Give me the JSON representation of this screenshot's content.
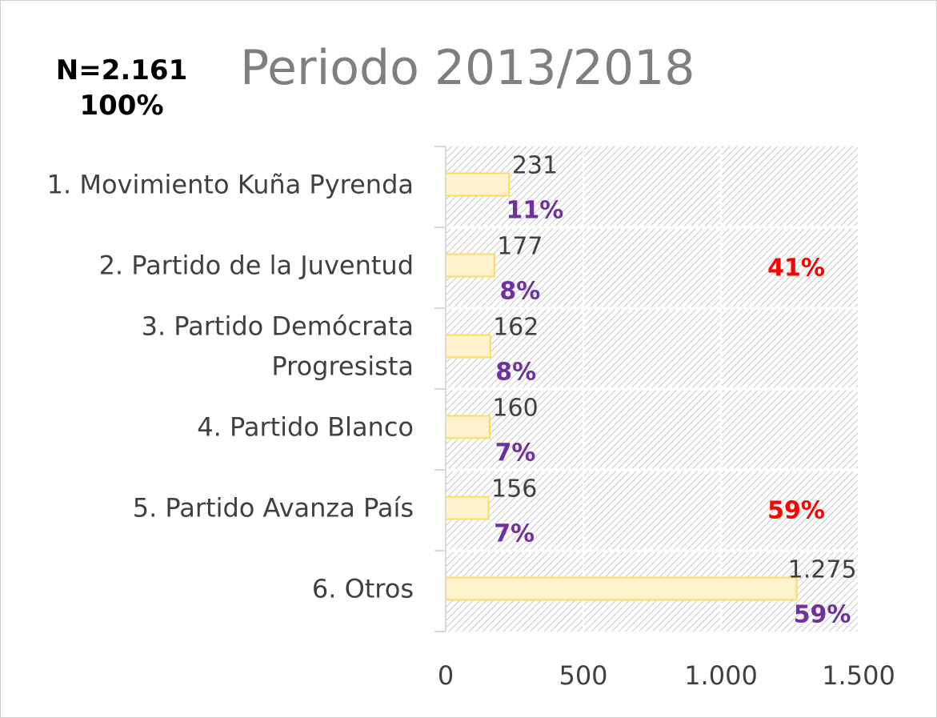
{
  "header": {
    "n_text": "N=2.161",
    "total_pct": "100%"
  },
  "chart_data": {
    "type": "bar",
    "orientation": "horizontal",
    "title": "Periodo 2013/2018",
    "categories": [
      "1. Movimiento Kuña Pyrenda",
      "2. Partido de la Juventud",
      "3. Partido Demócrata Progresista",
      "4. Partido Blanco",
      "5. Partido Avanza País",
      "6. Otros"
    ],
    "category_lines": [
      [
        "1. Movimiento Kuña Pyrenda"
      ],
      [
        "2. Partido de la Juventud"
      ],
      [
        "3. Partido Demócrata",
        "Progresista"
      ],
      [
        "4. Partido Blanco"
      ],
      [
        "5. Partido Avanza País"
      ],
      [
        "6. Otros"
      ]
    ],
    "values": [
      231,
      177,
      162,
      160,
      156,
      1275
    ],
    "value_labels": [
      "231",
      "177",
      "162",
      "160",
      "156",
      "1.275"
    ],
    "pct_labels": [
      "11%",
      "8%",
      "8%",
      "7%",
      "7%",
      "59%"
    ],
    "group_annotations": [
      {
        "text": "41%",
        "row": 1
      },
      {
        "text": "59%",
        "row": 4
      }
    ],
    "xlim": [
      0,
      1500
    ],
    "xticks": [
      0,
      500,
      1000,
      1500
    ],
    "xtick_labels": [
      "0",
      "500",
      "1.000",
      "1.500"
    ],
    "grid": true,
    "bar_fill": "#fff2cc",
    "bar_stroke": "#ffd966",
    "pct_color": "#7030a0",
    "annotation_color": "#ff0000",
    "title_color": "#7f7f7f"
  }
}
